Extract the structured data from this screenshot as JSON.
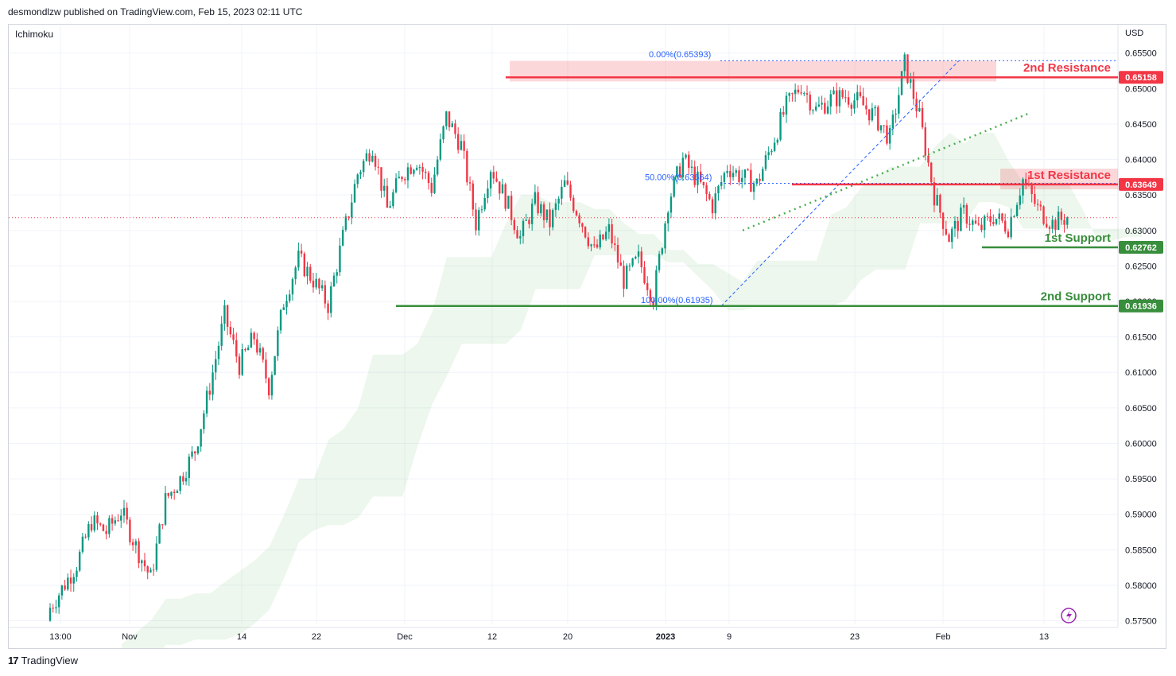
{
  "header": {
    "publisher_text": "desmondlzw published on TradingView.com, Feb 15, 2023 02:11 UTC"
  },
  "footer": {
    "brand": "TradingView",
    "logo_glyph": "17"
  },
  "chart_data": {
    "type": "candlestick",
    "indicator": "Ichimoku",
    "currency": "USD",
    "x_ticks": [
      "13:00",
      "Nov",
      "14",
      "22",
      "Dec",
      "12",
      "20",
      "2023",
      "9",
      "23",
      "Feb",
      "13"
    ],
    "y_ticks": [
      "0.65500",
      "0.65000",
      "0.64500",
      "0.64000",
      "0.63500",
      "0.63000",
      "0.62500",
      "0.62000",
      "0.61500",
      "0.61000",
      "0.60500",
      "0.60000",
      "0.59500",
      "0.59000",
      "0.58500",
      "0.58000",
      "0.57500"
    ],
    "ylim": [
      0.5745,
      0.659
    ],
    "current_price": 0.6318,
    "levels": [
      {
        "label": "2nd Resistance",
        "value": 0.65158,
        "tag": "0.65158",
        "color": "#f23645"
      },
      {
        "label": "1st Resistance",
        "value": 0.63649,
        "tag": "0.63649",
        "color": "#f23645"
      },
      {
        "label": "1st Support",
        "value": 0.62762,
        "tag": "0.62762",
        "color": "#388e3c"
      },
      {
        "label": "2nd Support",
        "value": 0.61936,
        "tag": "0.61936",
        "color": "#388e3c"
      }
    ],
    "fibonacci": [
      {
        "label": "0.00%(0.65393)",
        "value": 0.65393
      },
      {
        "label": "50.00%(0.63664)",
        "value": 0.63664
      },
      {
        "label": "100.00%(0.61935)",
        "value": 0.61935
      }
    ],
    "close_series": [
      0.5762,
      0.5795,
      0.583,
      0.589,
      0.5875,
      0.5905,
      0.5855,
      0.581,
      0.592,
      0.595,
      0.599,
      0.608,
      0.618,
      0.611,
      0.615,
      0.608,
      0.62,
      0.626,
      0.623,
      0.6195,
      0.629,
      0.638,
      0.642,
      0.633,
      0.638,
      0.64,
      0.636,
      0.646,
      0.642,
      0.631,
      0.639,
      0.6345,
      0.629,
      0.634,
      0.631,
      0.6365,
      0.632,
      0.627,
      0.63,
      0.623,
      0.626,
      0.6205,
      0.634,
      0.64,
      0.637,
      0.6335,
      0.639,
      0.6375,
      0.6365,
      0.642,
      0.6475,
      0.6505,
      0.647,
      0.6485,
      0.649,
      0.648,
      0.646,
      0.643,
      0.6535,
      0.646,
      0.635,
      0.629,
      0.6325,
      0.63,
      0.632,
      0.6305,
      0.6372,
      0.633,
      0.631,
      0.6319
    ]
  }
}
